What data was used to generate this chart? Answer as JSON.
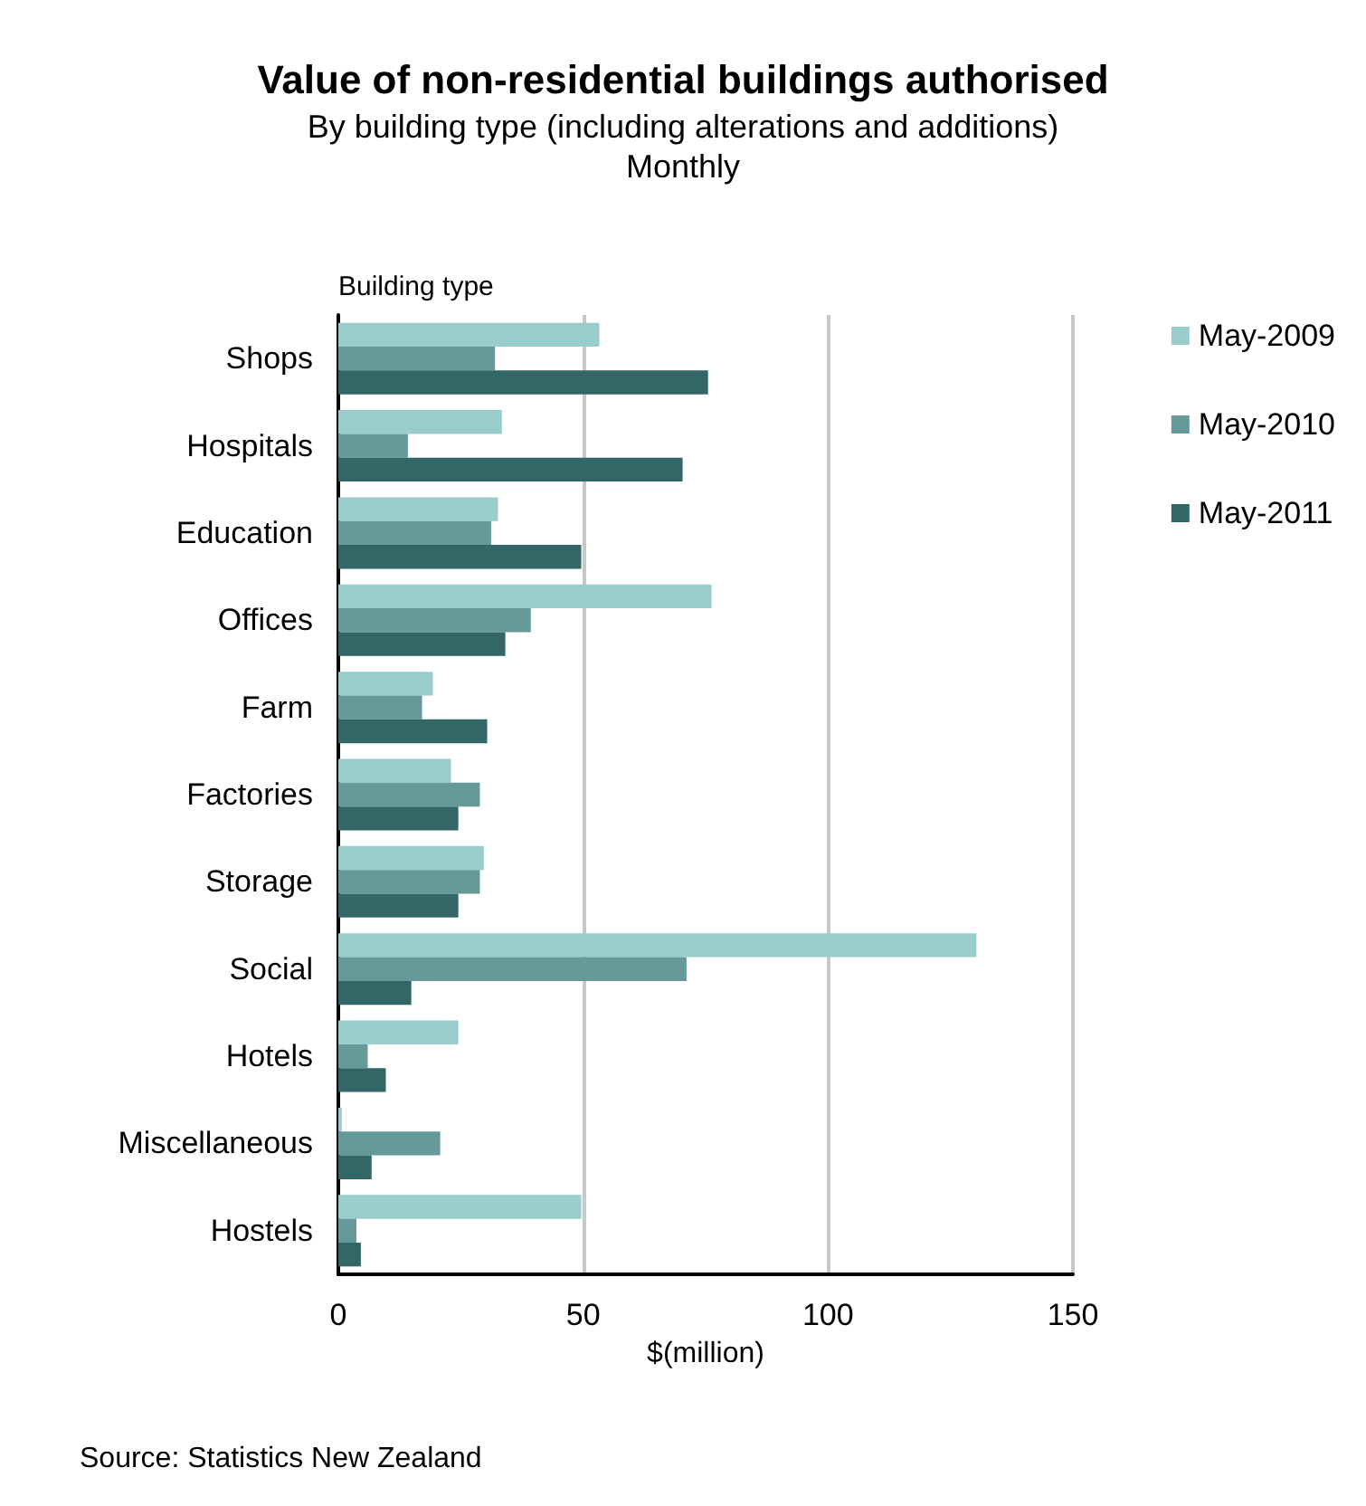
{
  "chart_data": {
    "type": "bar",
    "orientation": "horizontal",
    "title": "Value of non-residential buildings authorised",
    "subtitle": "By building type (including alterations and additions)\nMonthly",
    "ylabel": "Building type",
    "xlabel": "$(million)",
    "categories": [
      "Shops",
      "Hospitals",
      "Education",
      "Offices",
      "Farm",
      "Factories",
      "Storage",
      "Social",
      "Hotels",
      "Miscellaneous",
      "Hostels"
    ],
    "series": [
      {
        "name": "May-2009",
        "color": "#99cccc",
        "values": [
          53.3,
          33.4,
          32.6,
          76.2,
          19.3,
          23,
          29.7,
          130.3,
          24.5,
          0.7,
          49.6
        ]
      },
      {
        "name": "May-2010",
        "color": "#669999",
        "values": [
          32,
          14.2,
          31.2,
          39.3,
          17.1,
          28.9,
          28.9,
          71.1,
          6,
          20.8,
          3.7
        ]
      },
      {
        "name": "May-2011",
        "color": "#336666",
        "values": [
          75.5,
          70.3,
          49.6,
          34.1,
          30.4,
          24.5,
          24.5,
          14.9,
          9.7,
          6.8,
          4.6
        ]
      }
    ],
    "xlim": [
      0,
      150
    ],
    "xticks": [
      0,
      50,
      100,
      150
    ],
    "grid": "x",
    "legend": "right",
    "annotations": [
      "Source: Statistics New Zealand"
    ]
  }
}
